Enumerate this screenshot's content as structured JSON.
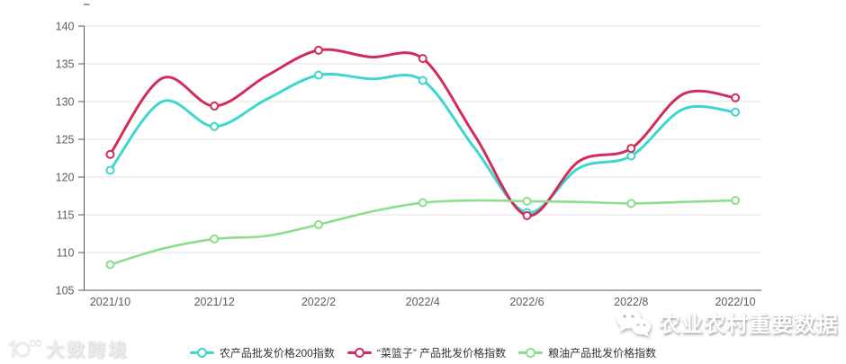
{
  "chart_data": {
    "type": "line",
    "x": [
      "2021/10",
      "2021/11",
      "2021/12",
      "2022/1",
      "2022/2",
      "2022/3",
      "2022/4",
      "2022/5",
      "2022/6",
      "2022/7",
      "2022/8",
      "2022/9",
      "2022/10"
    ],
    "x_axis_labels_shown": [
      "2021/10",
      "2021/12",
      "2022/2",
      "2022/4",
      "2022/6",
      "2022/8",
      "2022/10"
    ],
    "y_ticks": [
      105,
      110,
      115,
      120,
      125,
      130,
      135,
      140
    ],
    "ylim": [
      105,
      140
    ],
    "grid": true,
    "smooth": true,
    "marker": "hollow-circle",
    "markers_at_labeled_ticks_only": true,
    "legend_position": "bottom-center",
    "series": [
      {
        "name": "农产品批发价格200指数",
        "color": "#3ED6CE",
        "values": [
          120.9,
          130.0,
          126.7,
          130.3,
          133.5,
          133.0,
          132.8,
          123.8,
          115.3,
          121.2,
          122.8,
          129.0,
          128.6
        ]
      },
      {
        "name": "“菜篮子” 产品批发价格指数",
        "color": "#D22D5A",
        "values": [
          123.0,
          133.1,
          129.4,
          133.4,
          136.8,
          135.9,
          135.7,
          125.5,
          114.9,
          122.1,
          123.8,
          131.0,
          130.5
        ]
      },
      {
        "name": "粮油产品批发价格指数",
        "color": "#8CDE8C",
        "values": [
          108.4,
          110.5,
          111.8,
          112.2,
          113.7,
          115.4,
          116.6,
          116.9,
          116.8,
          116.7,
          116.5,
          116.7,
          116.9
        ]
      }
    ]
  },
  "colors": {
    "gridline": "#E3E3E3",
    "axis_line": "#555555",
    "tick_label": "#5D5D5D",
    "legend_text": "#333333"
  },
  "watermark_left": {
    "icon": "dashu-kuajing-logo",
    "text": "大数跨境"
  },
  "watermark_right": {
    "icon": "wechat-icon",
    "text": "农业农村重要数据"
  }
}
